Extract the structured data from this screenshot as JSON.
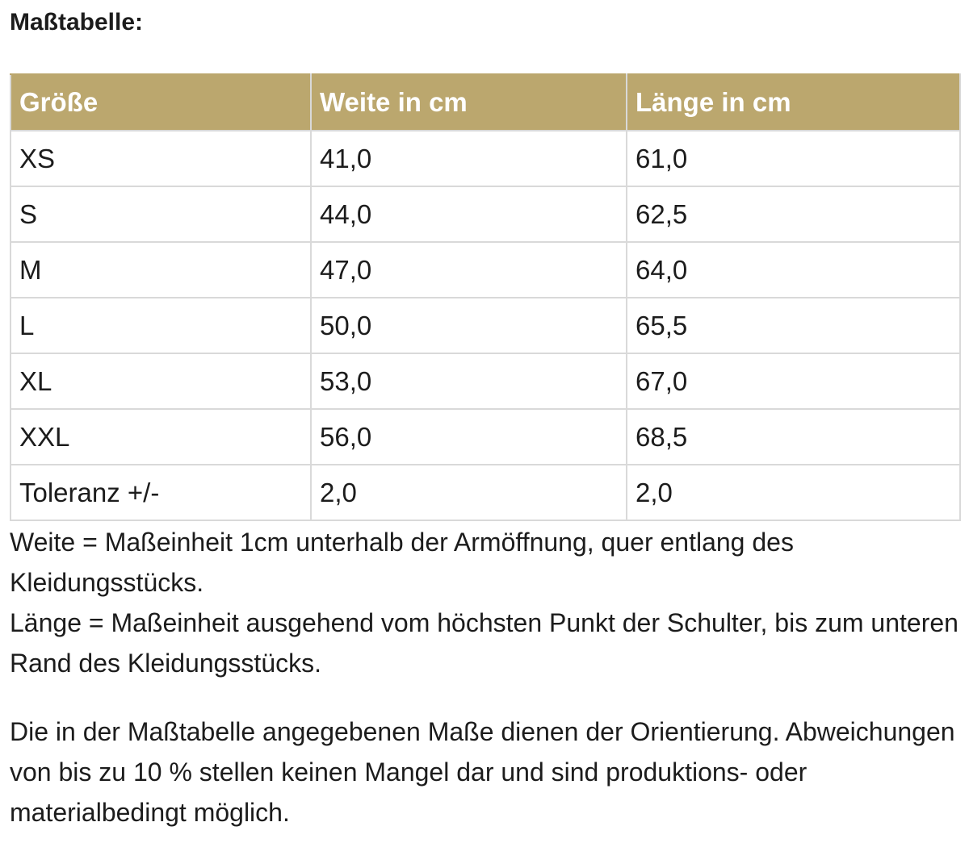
{
  "heading": "Maßtabelle:",
  "table": {
    "headers": [
      "Größe",
      "Weite in cm",
      "Länge in cm"
    ],
    "rows": [
      [
        "XS",
        "41,0",
        "61,0"
      ],
      [
        "S",
        "44,0",
        "62,5"
      ],
      [
        "M",
        "47,0",
        "64,0"
      ],
      [
        "L",
        "50,0",
        "65,5"
      ],
      [
        "XL",
        "53,0",
        "67,0"
      ],
      [
        "XXL",
        "56,0",
        "68,5"
      ],
      [
        "Toleranz +/-",
        "2,0",
        "2,0"
      ]
    ]
  },
  "notes": {
    "weite": "Weite = Maßeinheit 1cm unterhalb der Armöffnung, quer entlang des Kleidungsstücks.",
    "laenge": "Länge = Maßeinheit ausgehend vom höchsten Punkt der Schulter, bis zum unteren Rand des Kleidungsstücks.",
    "disclaimer": "Die in der Maßtabelle angegebenen Maße dienen der Orientierung. Abweichungen von bis zu 10 % stellen keinen Mangel dar und sind produktions- oder materialbedingt möglich."
  },
  "colors": {
    "header_background": "#bba76e",
    "header_text": "#ffffff",
    "grid_lines": "#d9d9d9"
  }
}
